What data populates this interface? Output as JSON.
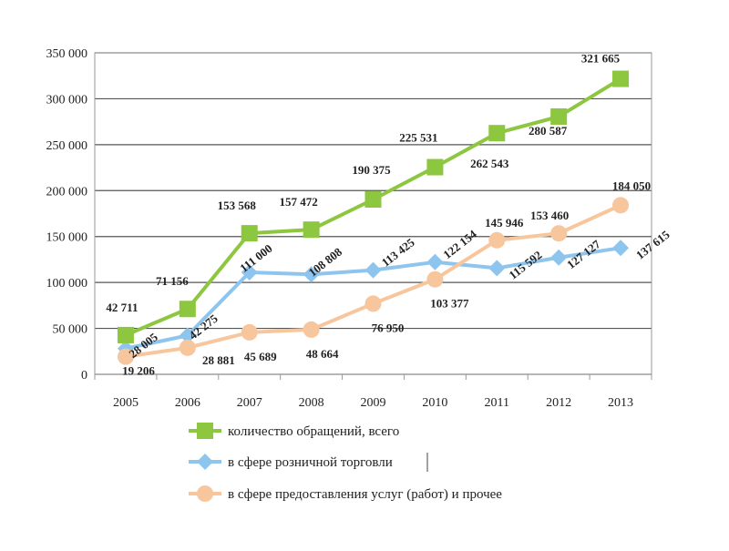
{
  "chart_data": {
    "type": "line",
    "title": "",
    "xlabel": "",
    "ylabel": "",
    "categories": [
      "2005",
      "2006",
      "2007",
      "2008",
      "2009",
      "2010",
      "2011",
      "2012",
      "2013"
    ],
    "ylim": [
      0,
      350000
    ],
    "yticks": [
      0,
      50000,
      100000,
      150000,
      200000,
      250000,
      300000,
      350000
    ],
    "ytick_labels": [
      "0",
      "50 000",
      "100 000",
      "150 000",
      "200 000",
      "250 000",
      "300 000",
      "350 000"
    ],
    "grid": "horizontal",
    "legend_position": "bottom",
    "series": [
      {
        "name": "количество обращений, всего",
        "color": "#8dc63f",
        "marker": "square",
        "values": [
          42711,
          71156,
          153568,
          157472,
          190375,
          225531,
          262543,
          280587,
          321665
        ],
        "labels": [
          "42 711",
          "71 156",
          "153 568",
          "157 472",
          "190 375",
          "225 531",
          "262 543",
          "280 587",
          "321 665"
        ]
      },
      {
        "name": "в сфере розничной торговли",
        "color": "#8ec5ee",
        "marker": "diamond",
        "values": [
          28005,
          42275,
          111000,
          108808,
          113425,
          122154,
          115592,
          127127,
          137615
        ],
        "labels": [
          "28 005",
          "42 275",
          "111 000",
          "108 808",
          "113 425",
          "122 154",
          "115 592",
          "127 127",
          "137 615"
        ]
      },
      {
        "name": "в сфере предоставления услуг (работ) и прочее",
        "color": "#f8c69d",
        "marker": "circle",
        "values": [
          19206,
          28881,
          45689,
          48664,
          76950,
          103377,
          145946,
          153460,
          184050
        ],
        "labels": [
          "19 206",
          "28 881",
          "45 689",
          "48 664",
          "76 950",
          "103 377",
          "145 946",
          "153 460",
          "184 050"
        ]
      }
    ]
  }
}
